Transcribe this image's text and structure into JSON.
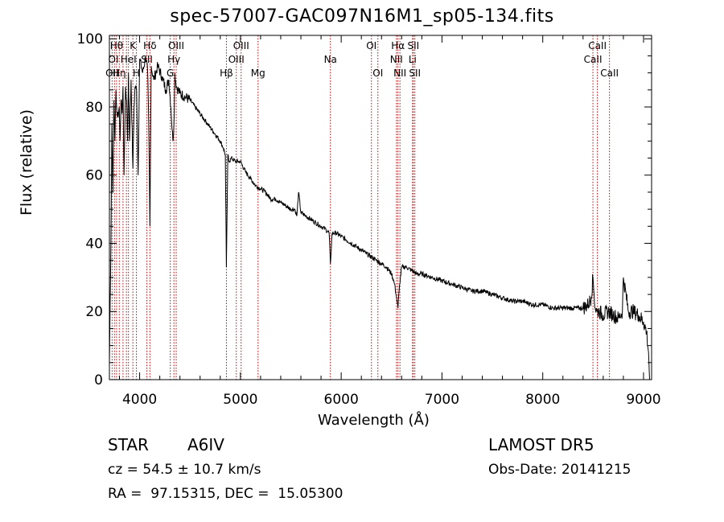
{
  "chart_data": {
    "type": "line",
    "title": "spec-57007-GAC097N16M1_sp05-134.fits",
    "xlabel": "Wavelength (Å)",
    "ylabel": "Flux (relative)",
    "xlim": [
      3700,
      9080
    ],
    "ylim": [
      0,
      101
    ],
    "xticks": [
      4000,
      5000,
      6000,
      7000,
      8000,
      9000
    ],
    "xtick_labels": [
      "4000",
      "5000",
      "6000",
      "7000",
      "8000",
      "9000"
    ],
    "yticks": [
      0,
      20,
      40,
      60,
      80,
      100
    ],
    "ytick_labels": [
      "0",
      "20",
      "40",
      "60",
      "80",
      "100"
    ],
    "line_color": "#000000",
    "marker_color": "#cc0000",
    "series": [
      {
        "x": [
          3700,
          3715,
          3725,
          3735,
          3745,
          3755,
          3765,
          3775,
          3790,
          3797,
          3805,
          3815,
          3825,
          3835,
          3845,
          3860,
          3870,
          3880,
          3889,
          3900,
          3915,
          3933,
          3945,
          3955,
          3970,
          3985,
          4000,
          4030,
          4060,
          4080,
          4090,
          4102,
          4115,
          4140,
          4180,
          4220,
          4260,
          4290,
          4310,
          4330,
          4340,
          4350,
          4365,
          4400,
          4450,
          4500,
          4550,
          4600,
          4650,
          4700,
          4750,
          4800,
          4830,
          4850,
          4861,
          4875,
          4890,
          4910,
          4950,
          5000,
          5050,
          5100,
          5150,
          5200,
          5250,
          5300,
          5350,
          5400,
          5450,
          5500,
          5540,
          5560,
          5577,
          5600,
          5650,
          5700,
          5750,
          5800,
          5850,
          5880,
          5893,
          5910,
          5950,
          6000,
          6050,
          6100,
          6150,
          6200,
          6250,
          6300,
          6350,
          6400,
          6450,
          6500,
          6530,
          6550,
          6563,
          6580,
          6600,
          6650,
          6700,
          6750,
          6800,
          6900,
          7000,
          7100,
          7200,
          7300,
          7400,
          7500,
          7600,
          7700,
          7800,
          7900,
          8000,
          8100,
          8200,
          8300,
          8400,
          8450,
          8480,
          8498,
          8510,
          8520,
          8540,
          8560,
          8600,
          8650,
          8700,
          8750,
          8790,
          8800,
          8850,
          8900,
          8950,
          9000,
          9030,
          9050,
          9060
        ],
        "y": [
          5,
          40,
          75,
          55,
          82,
          70,
          85,
          78,
          78,
          80,
          70,
          82,
          78,
          86,
          60,
          86,
          82,
          70,
          90,
          70,
          88,
          62,
          80,
          86,
          85,
          60,
          94,
          90,
          95,
          90,
          75,
          45,
          92,
          88,
          92,
          89,
          85,
          88,
          80,
          70,
          75,
          90,
          86,
          84,
          83,
          82,
          80,
          78,
          76,
          74,
          72,
          70,
          68,
          66,
          33,
          66,
          64,
          65,
          64,
          64,
          61,
          59,
          57,
          56,
          55,
          53,
          53,
          52,
          51,
          50,
          50,
          48,
          55,
          49,
          48,
          47,
          46,
          45,
          44,
          43,
          34,
          43,
          43,
          42,
          41,
          40,
          39,
          38,
          37,
          36,
          35,
          34,
          33,
          31,
          28,
          24,
          21,
          28,
          33,
          33,
          32,
          31,
          31,
          30,
          29,
          28,
          27,
          26,
          26,
          25,
          24,
          23,
          23,
          22,
          22,
          21,
          21,
          21,
          21,
          22,
          24,
          30,
          25,
          21,
          20,
          20,
          19,
          20,
          19,
          18,
          20,
          30,
          20,
          20,
          19,
          17,
          14,
          8,
          0
        ]
      }
    ],
    "spectral_lines": [
      {
        "wl": 3727,
        "label": "OII",
        "row": 3
      },
      {
        "wl": 3750,
        "label": "",
        "row": 0
      },
      {
        "wl": 3771,
        "label": "Hθ",
        "row": 1
      },
      {
        "wl": 3798,
        "label": "Hη",
        "row": 3
      },
      {
        "wl": 3835,
        "label": "",
        "row": 0
      },
      {
        "wl": 3869,
        "label": "",
        "row": 0
      },
      {
        "wl": 3889,
        "label": "HeI",
        "row": 2
      },
      {
        "wl": 3933,
        "label": "K",
        "row": 1
      },
      {
        "wl": 3968,
        "label": "H",
        "row": 3
      },
      {
        "wl": 4072,
        "label": "SII",
        "row": 2
      },
      {
        "wl": 4102,
        "label": "Hδ",
        "row": 1
      },
      {
        "wl": 4304,
        "label": "G",
        "row": 3
      },
      {
        "wl": 4340,
        "label": "Hγ",
        "row": 2
      },
      {
        "wl": 4363,
        "label": "OIII",
        "row": 1
      },
      {
        "wl": 4861,
        "label": "Hβ",
        "row": 3
      },
      {
        "wl": 4959,
        "label": "OIII",
        "row": 2
      },
      {
        "wl": 5007,
        "label": "OIII",
        "row": 1
      },
      {
        "wl": 5175,
        "label": "Mg",
        "row": 3
      },
      {
        "wl": 5893,
        "label": "Na",
        "row": 2
      },
      {
        "wl": 6300,
        "label": "OI",
        "row": 1
      },
      {
        "wl": 6364,
        "label": "OI",
        "row": 3
      },
      {
        "wl": 6548,
        "label": "NII",
        "row": 2
      },
      {
        "wl": 6563,
        "label": "Hα",
        "row": 1
      },
      {
        "wl": 6583,
        "label": "NII",
        "row": 3
      },
      {
        "wl": 6708,
        "label": "Li",
        "row": 2
      },
      {
        "wl": 6716,
        "label": "SII",
        "row": 1
      },
      {
        "wl": 6731,
        "label": "SII",
        "row": 3
      },
      {
        "wl": 8498,
        "label": "CaII",
        "row": 2
      },
      {
        "wl": 8542,
        "label": "CaII",
        "row": 1
      },
      {
        "wl": 8662,
        "label": "CaII",
        "row": 3
      }
    ],
    "extra_labels": [
      {
        "wl": 3740,
        "label": "OI",
        "row": 2
      }
    ]
  },
  "info": {
    "object_class": "STAR",
    "subclass": "A6IV",
    "survey": "LAMOST DR5",
    "redshift": "cz = 54.5 ± 10.7 km/s",
    "obs_date": "Obs-Date: 20141215",
    "coords": "RA =  97.15315, DEC =  15.05300"
  }
}
